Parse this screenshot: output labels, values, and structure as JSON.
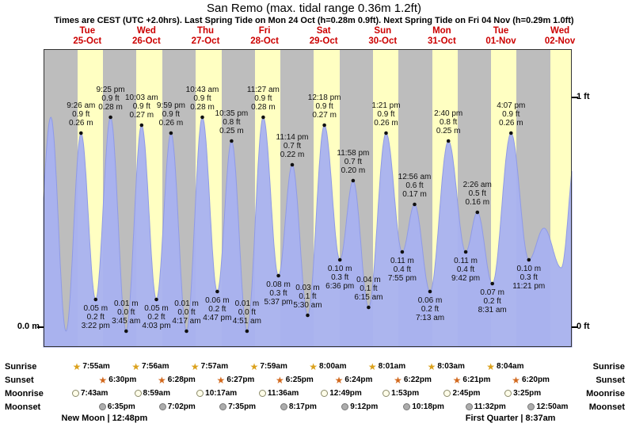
{
  "title": "San Remo (max. tidal range 0.36m 1.2ft)",
  "subtitle": "Times are CEST (UTC +2.0hrs). Last Spring Tide on Mon 24 Oct (h=0.28m 0.9ft). Next Spring Tide on Fri 04 Nov (h=0.29m 1.0ft)",
  "y_axis": {
    "left_bottom": "0.0 m",
    "right_top": "1 ft",
    "right_bottom": "0 ft"
  },
  "side_labels": [
    "Sunrise",
    "Sunset",
    "Moonrise",
    "Moonset"
  ],
  "moon_phases": [
    {
      "label": "New Moon",
      "time": "12:48pm",
      "text": "New Moon | 12:48pm",
      "day_index": 0.06
    },
    {
      "label": "First Quarter",
      "time": "8:37am",
      "text": "First Quarter | 8:37am",
      "day_index": 6.9
    }
  ],
  "colors": {
    "date_red": "#cc0000",
    "day_band": "#ffffc2",
    "night_band": "#bdbdbd",
    "tide_fill": "#a8b1f0",
    "tide_stroke": "#8f9ae6",
    "sunrise_star": "#dba11c",
    "sunset_star": "#d2691e",
    "moonrise_circle": "#fffde9",
    "moonset_circle": "#adadad"
  },
  "chart_data": {
    "type": "area",
    "title": "San Remo tide height",
    "ylabel": "tide height",
    "unit_left": "m",
    "unit_right": "ft",
    "ylim": [
      0,
      0.36
    ],
    "x_days": 9,
    "days": [
      {
        "name": "Tue",
        "date": "25-Oct",
        "sunrise": "7:55am",
        "sunrise_h": 7.917,
        "sunset": "6:30pm",
        "sunset_h": 18.5,
        "moonrise": "7:43am",
        "moonrise_h": 7.717,
        "moonset": "6:35pm",
        "moonset_h": 18.583
      },
      {
        "name": "Wed",
        "date": "26-Oct",
        "sunrise": "7:56am",
        "sunrise_h": 7.933,
        "sunset": "6:28pm",
        "sunset_h": 18.467,
        "moonrise": "8:59am",
        "moonrise_h": 8.983,
        "moonset": "7:02pm",
        "moonset_h": 19.033
      },
      {
        "name": "Thu",
        "date": "27-Oct",
        "sunrise": "7:57am",
        "sunrise_h": 7.95,
        "sunset": "6:27pm",
        "sunset_h": 18.45,
        "moonrise": "10:17am",
        "moonrise_h": 10.283,
        "moonset": "7:35pm",
        "moonset_h": 19.583
      },
      {
        "name": "Fri",
        "date": "28-Oct",
        "sunrise": "7:59am",
        "sunrise_h": 7.983,
        "sunset": "6:25pm",
        "sunset_h": 18.417,
        "moonrise": "11:36am",
        "moonrise_h": 11.6,
        "moonset": "8:17pm",
        "moonset_h": 20.283
      },
      {
        "name": "Sat",
        "date": "29-Oct",
        "sunrise": "8:00am",
        "sunrise_h": 8.0,
        "sunset": "6:24pm",
        "sunset_h": 18.4,
        "moonrise": "12:49pm",
        "moonrise_h": 12.817,
        "moonset": "9:12pm",
        "moonset_h": 21.2
      },
      {
        "name": "Sun",
        "date": "30-Oct",
        "sunrise": "8:01am",
        "sunrise_h": 8.017,
        "sunset": "6:22pm",
        "sunset_h": 18.367,
        "moonrise": "1:53pm",
        "moonrise_h": 13.883,
        "moonset": "10:18pm",
        "moonset_h": 22.3
      },
      {
        "name": "Mon",
        "date": "31-Oct",
        "sunrise": "8:03am",
        "sunrise_h": 8.05,
        "sunset": "6:21pm",
        "sunset_h": 18.35,
        "moonrise": "2:45pm",
        "moonrise_h": 14.75,
        "moonset": "11:32pm",
        "moonset_h": 23.533
      },
      {
        "name": "Tue",
        "date": "01-Nov",
        "sunrise": "8:04am",
        "sunrise_h": 8.067,
        "sunset": "6:20pm",
        "sunset_h": 18.333,
        "moonrise": "3:25pm",
        "moonrise_h": 15.417,
        "moonset": "12:50am",
        "moonset_h": 24.833
      },
      {
        "name": "Wed",
        "date": "02-Nov"
      }
    ],
    "tide_events": [
      {
        "t": -9.2,
        "h": 0.05
      },
      {
        "t": -2.83,
        "h": 0.28
      },
      {
        "t": 3.33,
        "h": 0.01
      },
      {
        "t": 9.433,
        "h": 0.26,
        "type": "high",
        "lines": [
          "9:26 am",
          "0.9 ft",
          "0.26 m"
        ]
      },
      {
        "t": 15.367,
        "h": 0.05,
        "type": "low",
        "lines": [
          "0.05 m",
          "0.2 ft",
          "3:22 pm"
        ]
      },
      {
        "t": 21.417,
        "h": 0.28,
        "type": "high",
        "lines": [
          "9:25 pm",
          "0.9 ft",
          "0.28 m"
        ]
      },
      {
        "t": 27.75,
        "h": 0.01,
        "type": "low",
        "lines": [
          "0.01 m",
          "0.0 ft",
          "3:45 am"
        ]
      },
      {
        "t": 34.05,
        "h": 0.27,
        "type": "high",
        "lines": [
          "10:03 am",
          "0.9 ft",
          "0.27 m"
        ]
      },
      {
        "t": 40.05,
        "h": 0.05,
        "type": "low",
        "lines": [
          "0.05 m",
          "0.2 ft",
          "4:03 pm"
        ]
      },
      {
        "t": 45.983,
        "h": 0.26,
        "type": "high",
        "lines": [
          "9:59 pm",
          "0.9 ft",
          "0.26 m"
        ]
      },
      {
        "t": 52.283,
        "h": 0.01,
        "type": "low",
        "lines": [
          "0.01 m",
          "0.0 ft",
          "4:17 am"
        ]
      },
      {
        "t": 58.717,
        "h": 0.28,
        "type": "high",
        "lines": [
          "10:43 am",
          "0.9 ft",
          "0.28 m"
        ]
      },
      {
        "t": 64.783,
        "h": 0.06,
        "type": "low",
        "lines": [
          "0.06 m",
          "0.2 ft",
          "4:47 pm"
        ]
      },
      {
        "t": 70.583,
        "h": 0.25,
        "type": "high",
        "lines": [
          "10:35 pm",
          "0.8 ft",
          "0.25 m"
        ]
      },
      {
        "t": 76.85,
        "h": 0.01,
        "type": "low",
        "lines": [
          "0.01 m",
          "0.0 ft",
          "4:51 am"
        ]
      },
      {
        "t": 83.45,
        "h": 0.28,
        "type": "high",
        "lines": [
          "11:27 am",
          "0.9 ft",
          "0.28 m"
        ]
      },
      {
        "t": 89.617,
        "h": 0.08,
        "type": "low",
        "lines": [
          "0.08 m",
          "0.3 ft",
          "5:37 pm"
        ]
      },
      {
        "t": 95.233,
        "h": 0.22,
        "type": "high",
        "lines": [
          "11:14 pm",
          "0.7 ft",
          "0.22 m"
        ]
      },
      {
        "t": 101.5,
        "h": 0.03,
        "type": "low",
        "lines": [
          "0.03 m",
          "0.1 ft",
          "5:30 am"
        ]
      },
      {
        "t": 108.3,
        "h": 0.27,
        "type": "high",
        "lines": [
          "12:18 pm",
          "0.9 ft",
          "0.27 m"
        ]
      },
      {
        "t": 114.6,
        "h": 0.1,
        "type": "low",
        "lines": [
          "0.10 m",
          "0.3 ft",
          "6:36 pm"
        ]
      },
      {
        "t": 119.967,
        "h": 0.2,
        "type": "high",
        "lines": [
          "11:58 pm",
          "0.7 ft",
          "0.20 m"
        ]
      },
      {
        "t": 126.25,
        "h": 0.04,
        "type": "low",
        "lines": [
          "0.04 m",
          "0.1 ft",
          "6:15 am"
        ]
      },
      {
        "t": 133.35,
        "h": 0.26,
        "type": "high",
        "lines": [
          "1:21 pm",
          "0.9 ft",
          "0.26 m"
        ]
      },
      {
        "t": 139.917,
        "h": 0.11,
        "type": "low",
        "lines": [
          "0.11 m",
          "0.4 ft",
          "7:55 pm"
        ]
      },
      {
        "t": 144.933,
        "h": 0.17,
        "type": "high",
        "lines": [
          "12:56 am",
          "0.6 ft",
          "0.17 m"
        ]
      },
      {
        "t": 151.217,
        "h": 0.06,
        "type": "low",
        "lines": [
          "0.06 m",
          "0.2 ft",
          "7:13 am"
        ]
      },
      {
        "t": 158.667,
        "h": 0.25,
        "type": "high",
        "lines": [
          "2:40 pm",
          "0.8 ft",
          "0.25 m"
        ]
      },
      {
        "t": 165.7,
        "h": 0.11,
        "type": "low",
        "lines": [
          "0.11 m",
          "0.4 ft",
          "9:42 pm"
        ]
      },
      {
        "t": 170.433,
        "h": 0.16,
        "type": "high",
        "lines": [
          "2:26 am",
          "0.5 ft",
          "0.16 m"
        ]
      },
      {
        "t": 176.517,
        "h": 0.07,
        "type": "low",
        "lines": [
          "0.07 m",
          "0.2 ft",
          "8:31 am"
        ]
      },
      {
        "t": 184.117,
        "h": 0.26,
        "type": "high",
        "lines": [
          "4:07 pm",
          "0.9 ft",
          "0.26 m"
        ]
      },
      {
        "t": 191.35,
        "h": 0.1,
        "type": "low",
        "lines": [
          "0.10 m",
          "0.3 ft",
          "11:21 pm"
        ]
      },
      {
        "t": 197.5,
        "h": 0.14
      },
      {
        "t": 204.5,
        "h": 0.09
      },
      {
        "t": 210.5,
        "h": 0.24
      }
    ]
  }
}
